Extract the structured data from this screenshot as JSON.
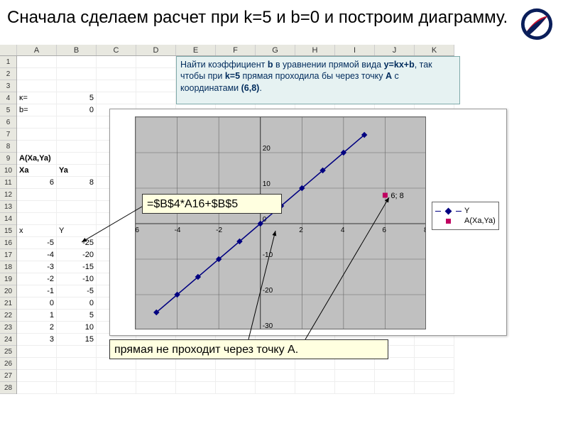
{
  "title": "Сначала сделаем расчет при k=5 и b=0 и построим диаграмму.",
  "columns": [
    "A",
    "B",
    "C",
    "D",
    "E",
    "F",
    "G",
    "H",
    "I",
    "J",
    "K"
  ],
  "row_count": 28,
  "problem_html": "Найти  коэффициент <b>b</b> в уравнении прямой вида  <b>y=kx+b</b>, так чтобы при <b>k=5</b> прямая проходила бы через точку <b>A</b> с координатами <b>(6,8)</b>.",
  "cells": {
    "A4": "κ=",
    "B4": "5",
    "A5": "b=",
    "B5": "0",
    "A9": "A(Xa,Ya)",
    "A10": "Xa",
    "B10": "Ya",
    "A11": "6",
    "B11": "8",
    "A15": "x",
    "B15": "Y",
    "A16": "-5",
    "B16": "-25",
    "A17": "-4",
    "B17": "-20",
    "A18": "-3",
    "B18": "-15",
    "A19": "-2",
    "B19": "-10",
    "A20": "-1",
    "B20": "-5",
    "A21": "0",
    "B21": "0",
    "A22": "1",
    "B22": "5",
    "A23": "2",
    "B23": "10",
    "A24": "3",
    "B24": "15"
  },
  "bold_cells": [
    "A9",
    "A10",
    "B10"
  ],
  "chart": {
    "type": "scatter-line",
    "background_color": "#c0c0c0",
    "xlim": [
      -6,
      8
    ],
    "ylim": [
      -30,
      30
    ],
    "xtick_step": 2,
    "ytick_step": 10,
    "grid_color": "#666666",
    "series": [
      {
        "name": "Y",
        "color": "#000080",
        "marker": "diamond",
        "line": true,
        "points": [
          [
            -5,
            -25
          ],
          [
            -4,
            -20
          ],
          [
            -3,
            -15
          ],
          [
            -2,
            -10
          ],
          [
            -1,
            -5
          ],
          [
            0,
            0
          ],
          [
            1,
            5
          ],
          [
            2,
            10
          ],
          [
            3,
            15
          ],
          [
            4,
            20
          ],
          [
            5,
            25
          ]
        ]
      },
      {
        "name": "A(Xa,Ya)",
        "color": "#c00060",
        "marker": "square",
        "line": false,
        "points": [
          [
            6,
            8
          ]
        ],
        "label": "6; 8"
      }
    ]
  },
  "formula_callout": "=$B$4*A16+$B$5",
  "bottom_callout": "прямая  не проходит через точку А.",
  "logo_colors": {
    "ring": "#0a1e5a",
    "swoosh": "#c8102e"
  }
}
